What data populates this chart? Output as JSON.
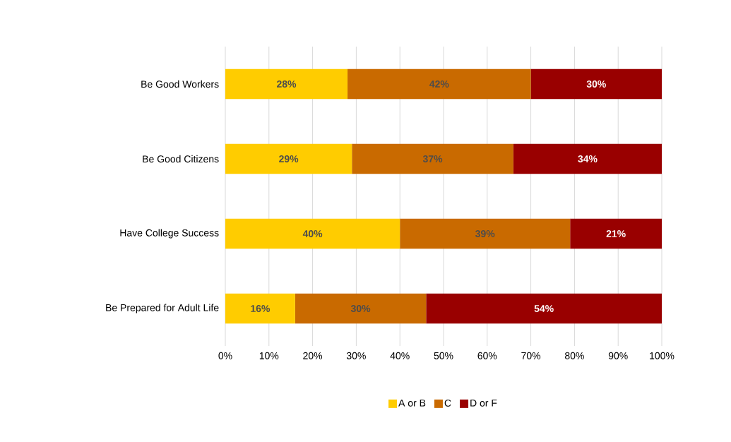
{
  "chart_data": {
    "type": "bar",
    "orientation": "horizontal",
    "stacked": true,
    "categories": [
      "Be Good Workers",
      "Be Good Citizens",
      "Have College Success",
      "Be Prepared for Adult Life"
    ],
    "series": [
      {
        "name": "A or B",
        "color": "#ffcc00",
        "values": [
          28,
          29,
          40,
          16
        ],
        "value_labels": [
          "28%",
          "29%",
          "40%",
          "16%"
        ]
      },
      {
        "name": "C",
        "color": "#c96a00",
        "values": [
          42,
          37,
          39,
          30
        ],
        "value_labels": [
          "42%",
          "37%",
          "39%",
          "30%"
        ]
      },
      {
        "name": "D or F",
        "color": "#990000",
        "values": [
          30,
          34,
          21,
          54
        ],
        "value_labels": [
          "30%",
          "34%",
          "21%",
          "54%"
        ]
      }
    ],
    "xlim": [
      0,
      100
    ],
    "xticks": [
      {
        "value": 0,
        "label": "0%"
      },
      {
        "value": 10,
        "label": "10%"
      },
      {
        "value": 20,
        "label": "20%"
      },
      {
        "value": 30,
        "label": "30%"
      },
      {
        "value": 40,
        "label": "40%"
      },
      {
        "value": 50,
        "label": "50%"
      },
      {
        "value": 60,
        "label": "60%"
      },
      {
        "value": 70,
        "label": "70%"
      },
      {
        "value": 80,
        "label": "80%"
      },
      {
        "value": 90,
        "label": "90%"
      },
      {
        "value": 100,
        "label": "100%"
      }
    ],
    "grid": "x",
    "legend": "bottom"
  }
}
